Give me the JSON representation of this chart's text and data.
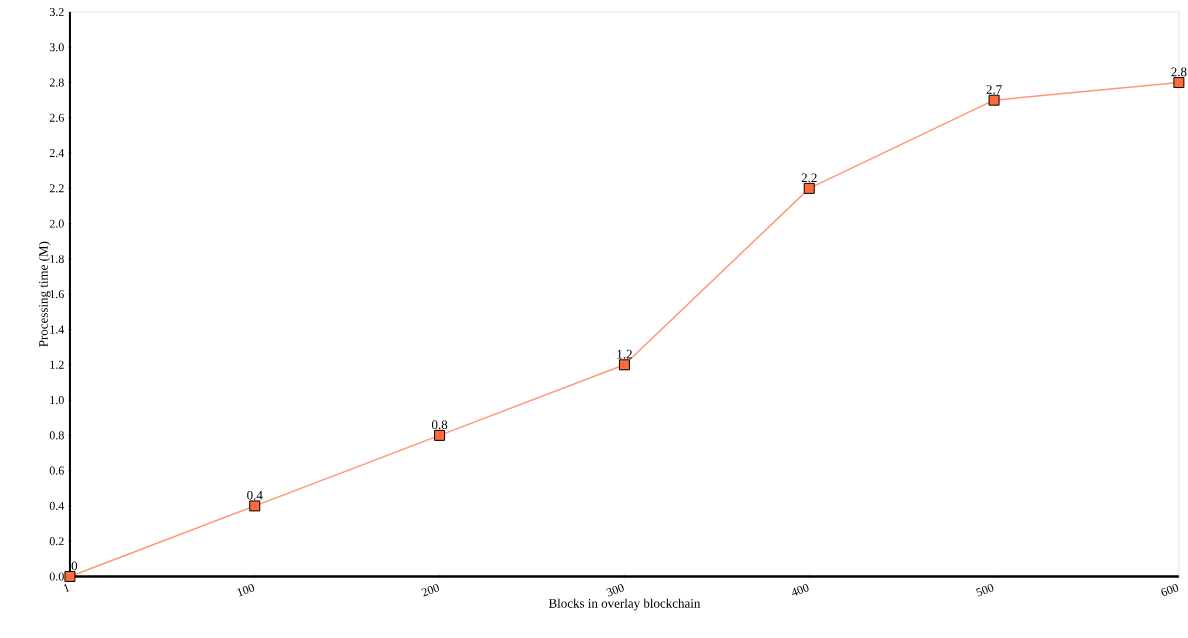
{
  "chart_data": {
    "type": "line",
    "xlabel": "Blocks in overlay blockchain",
    "ylabel": "Processing time (M)",
    "categories": [
      "1",
      "100",
      "200",
      "300",
      "400",
      "500",
      "600"
    ],
    "series": [
      {
        "color": "#ff6a3a",
        "values": [
          0,
          0.4,
          0.8,
          1.2,
          2.2,
          2.7,
          2.8
        ]
      }
    ],
    "ylim": [
      0,
      3.2
    ],
    "yticks": [
      {
        "value": 0,
        "label": "0.0"
      },
      0.2,
      0.4,
      0.6,
      0.8,
      {
        "value": 1,
        "label": "1.0"
      },
      1.2,
      1.4,
      1.6,
      1.8,
      {
        "value": 2,
        "label": "2.0"
      },
      2.2,
      2.4,
      2.6,
      2.8,
      {
        "value": 3,
        "label": "3.0"
      },
      3.2
    ],
    "marker": "square",
    "data_labels": true
  }
}
